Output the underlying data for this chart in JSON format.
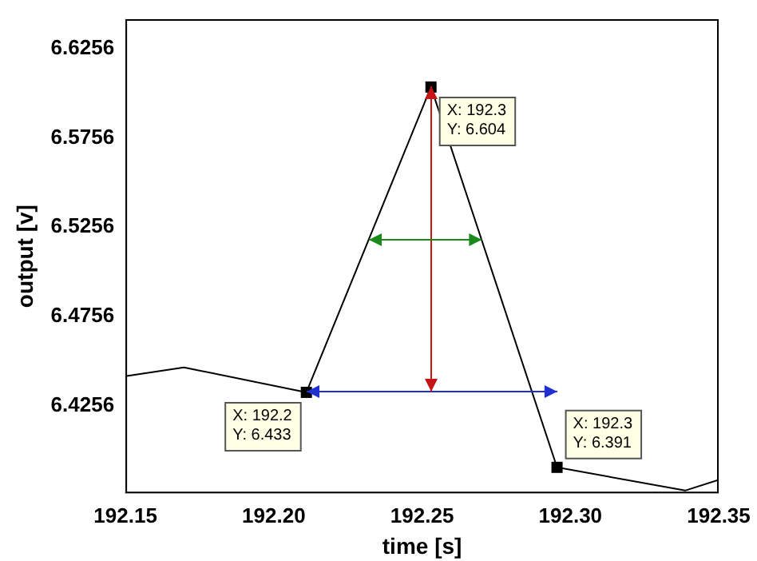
{
  "chart_data": {
    "type": "line",
    "xlabel": "time [s]",
    "ylabel": "output [v]",
    "x": [
      192.15,
      192.1697,
      192.211,
      192.253,
      192.2955,
      192.3387,
      192.35
    ],
    "series": [
      {
        "color": "#000000",
        "values": [
          6.442,
          6.447,
          6.433,
          6.604,
          6.391,
          6.378,
          6.384
        ]
      }
    ],
    "xlim": [
      192.15,
      192.35
    ],
    "xticks": [
      192.15,
      {
        "value": 192.2,
        "label": "192.20"
      },
      192.25,
      {
        "value": 192.3,
        "label": "192.30"
      },
      192.35
    ],
    "ylim": [
      6.3765,
      6.642
    ],
    "yticks": [
      6.4256,
      6.4756,
      6.5256,
      6.5756,
      6.6256
    ],
    "grid": false,
    "legend": false,
    "marker": "none",
    "line_style": "solid",
    "annotations": [
      {
        "text": "X: 192.2\nY: 6.433",
        "x": 192.211,
        "y": 6.433
      },
      {
        "text": "X: 192.3\nY: 6.604",
        "x": 192.253,
        "y": 6.604
      },
      {
        "text": "X: 192.3\nY: 6.391",
        "x": 192.2955,
        "y": 6.391
      }
    ]
  }
}
